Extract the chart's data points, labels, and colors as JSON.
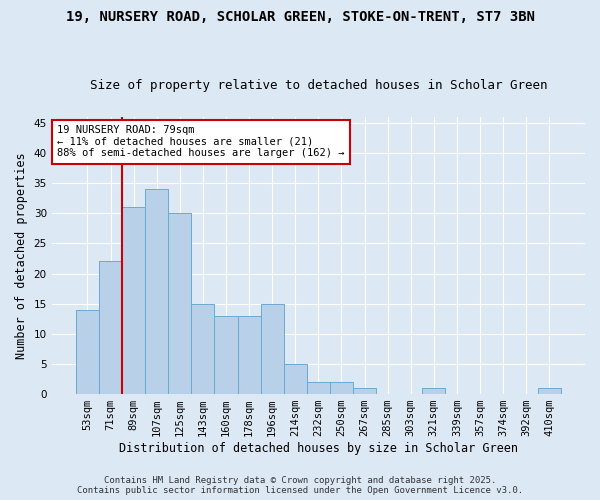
{
  "title": "19, NURSERY ROAD, SCHOLAR GREEN, STOKE-ON-TRENT, ST7 3BN",
  "subtitle": "Size of property relative to detached houses in Scholar Green",
  "xlabel": "Distribution of detached houses by size in Scholar Green",
  "ylabel": "Number of detached properties",
  "categories": [
    "53sqm",
    "71sqm",
    "89sqm",
    "107sqm",
    "125sqm",
    "143sqm",
    "160sqm",
    "178sqm",
    "196sqm",
    "214sqm",
    "232sqm",
    "250sqm",
    "267sqm",
    "285sqm",
    "303sqm",
    "321sqm",
    "339sqm",
    "357sqm",
    "374sqm",
    "392sqm",
    "410sqm"
  ],
  "values": [
    14,
    22,
    31,
    34,
    30,
    15,
    13,
    13,
    15,
    5,
    2,
    2,
    1,
    0,
    0,
    1,
    0,
    0,
    0,
    0,
    1
  ],
  "bar_color": "#b8d0e8",
  "bar_edge_color": "#6aaad4",
  "vline_color": "#cc0000",
  "annotation_text": "19 NURSERY ROAD: 79sqm\n← 11% of detached houses are smaller (21)\n88% of semi-detached houses are larger (162) →",
  "annotation_box_facecolor": "#ffffff",
  "annotation_box_edgecolor": "#cc0000",
  "ylim": [
    0,
    46
  ],
  "yticks": [
    0,
    5,
    10,
    15,
    20,
    25,
    30,
    35,
    40,
    45
  ],
  "footer_line1": "Contains HM Land Registry data © Crown copyright and database right 2025.",
  "footer_line2": "Contains public sector information licensed under the Open Government Licence v3.0.",
  "bg_color": "#dde8f5",
  "plot_bg_color": "#dde8f5",
  "title_fontsize": 10,
  "subtitle_fontsize": 9,
  "tick_fontsize": 7.5,
  "label_fontsize": 8.5,
  "footer_fontsize": 6.5,
  "annotation_fontsize": 7.5
}
